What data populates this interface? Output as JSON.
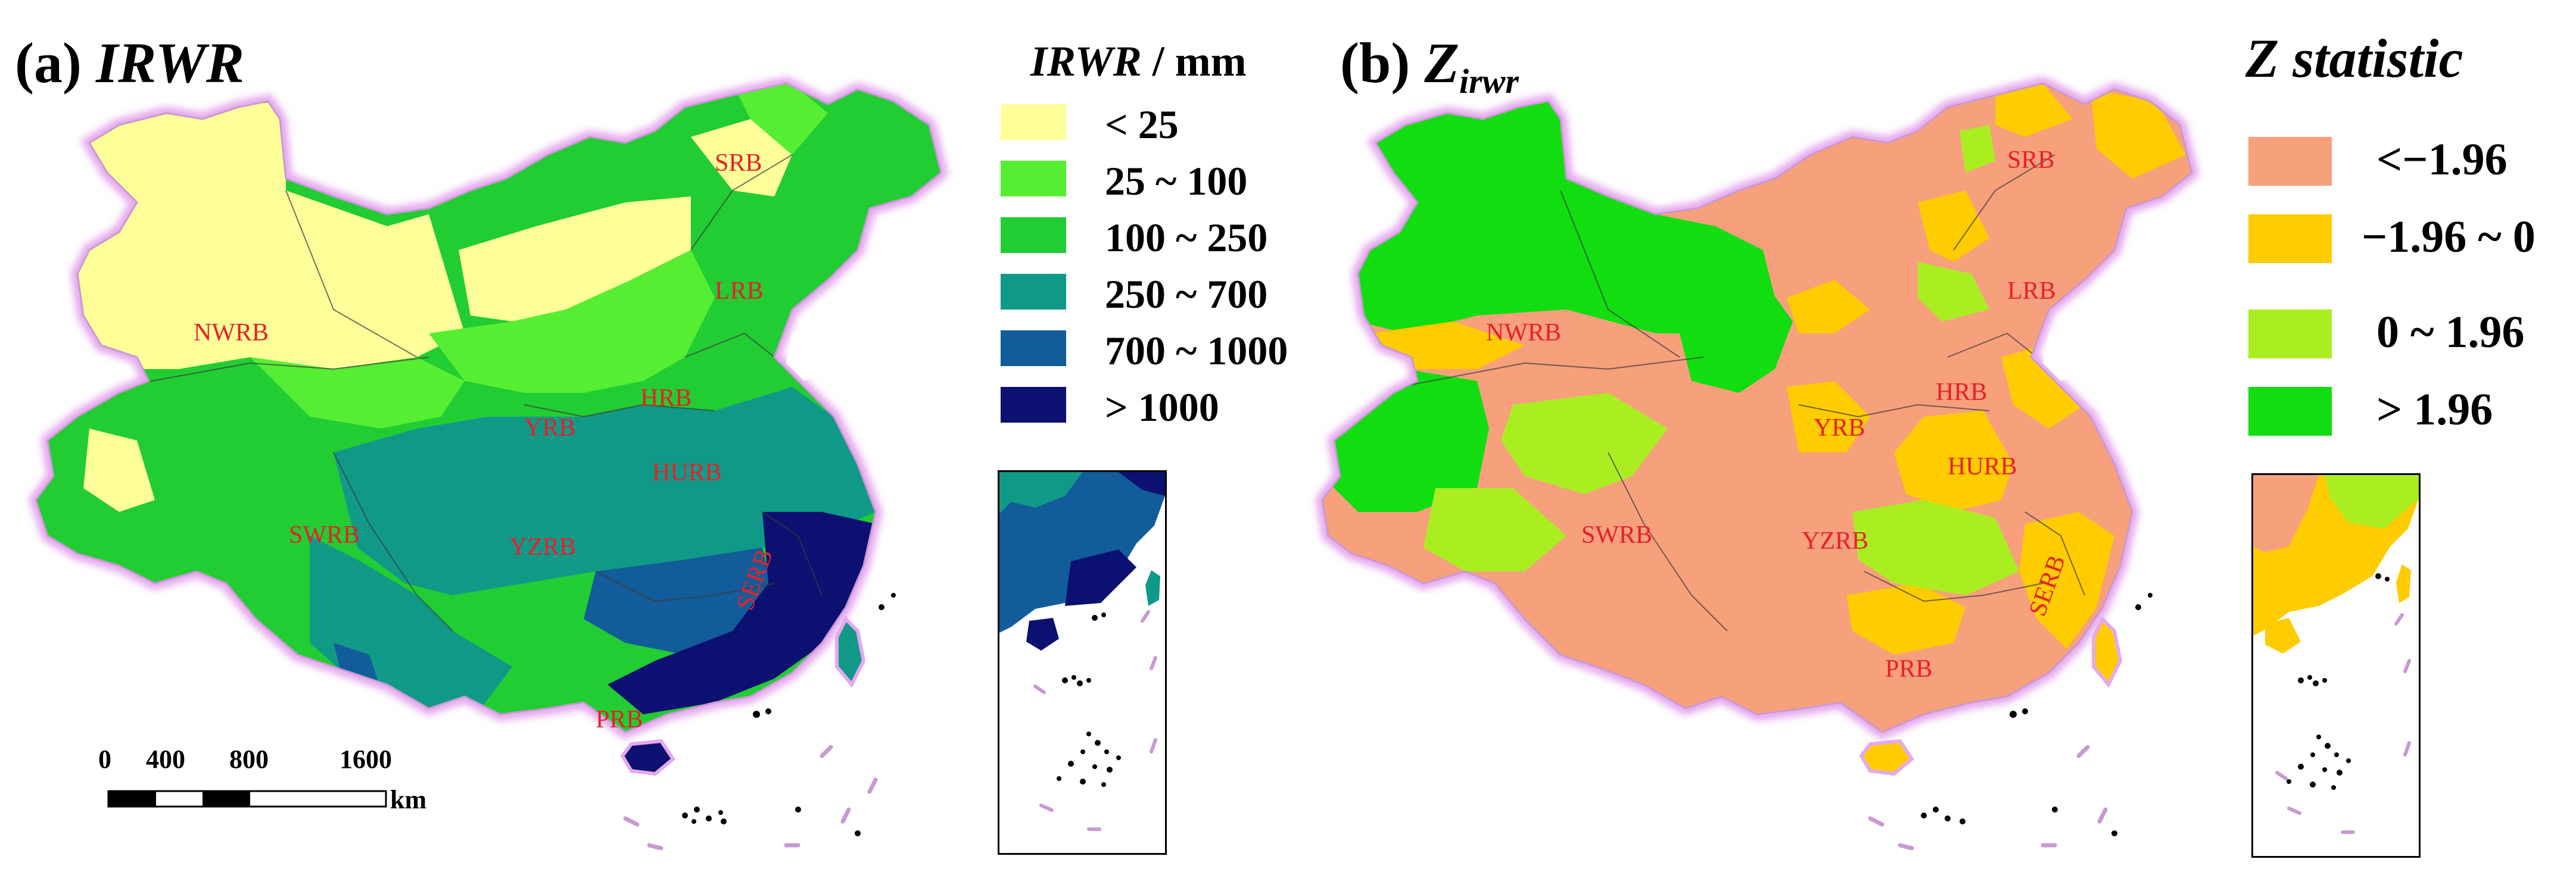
{
  "panel_a": {
    "title_tag": "(a)",
    "title_text": "IRWR",
    "legend_title": "IRWR",
    "legend_unit": " / mm",
    "legend": [
      {
        "label": "< 25",
        "color": "#ffff99"
      },
      {
        "label": "25 ~ 100",
        "color": "#55ee33"
      },
      {
        "label": "100 ~ 250",
        "color": "#22cc33"
      },
      {
        "label": "250 ~ 700",
        "color": "#119988"
      },
      {
        "label": "700 ~ 1000",
        "color": "#125c99"
      },
      {
        "label": "> 1000",
        "color": "#0c1070"
      }
    ],
    "basins": [
      "SRB",
      "LRB",
      "NWRB",
      "HRB",
      "YRB",
      "HURB",
      "SWRB",
      "YZRB",
      "SERB",
      "PRB"
    ],
    "scale_bar": {
      "ticks": [
        "0",
        "400",
        "800",
        "1600"
      ],
      "unit": "km"
    }
  },
  "panel_b": {
    "title_tag": "(b)",
    "title_main": "Z",
    "title_sub": "irwr",
    "legend_title": "Z statistic",
    "legend": [
      {
        "label": "<−1.96",
        "color": "#f7a07c"
      },
      {
        "label": "−1.96 ~ 0",
        "color": "#ffcc00"
      },
      {
        "label": "0 ~ 1.96",
        "color": "#aaee22"
      },
      {
        "label": "> 1.96",
        "color": "#11dd11"
      }
    ],
    "basins": [
      "SRB",
      "LRB",
      "NWRB",
      "HRB",
      "YRB",
      "HURB",
      "SWRB",
      "YZRB",
      "SERB",
      "PRB"
    ]
  },
  "colors": {
    "border_glow": "#e5a8ee",
    "basin_label": "#e8202a",
    "region_line": "#3a3a3a"
  }
}
